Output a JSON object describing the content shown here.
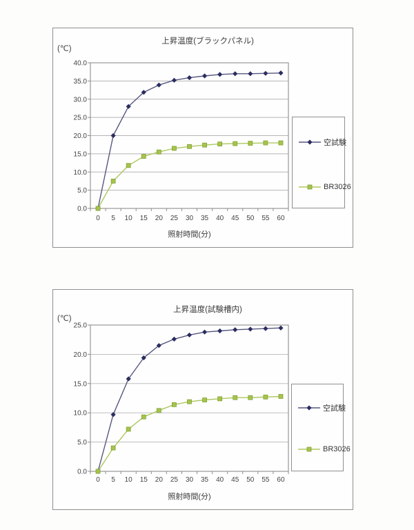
{
  "page": {
    "background": "#fdfdfc"
  },
  "chart_data": [
    {
      "type": "line",
      "title": "上昇温度(ブラックパネル)",
      "xlabel": "照射時間(分)",
      "ylabel": "(℃)",
      "x": [
        0,
        5,
        10,
        15,
        20,
        25,
        30,
        35,
        40,
        45,
        50,
        55,
        60
      ],
      "series": [
        {
          "name": "空試験",
          "marker": "diamond",
          "marker_color": "#2b2d60",
          "line_color": "#55577f",
          "values": [
            0.0,
            20.0,
            28.0,
            31.9,
            33.9,
            35.2,
            35.9,
            36.4,
            36.8,
            37.0,
            37.0,
            37.1,
            37.2
          ]
        },
        {
          "name": "BR3026",
          "marker": "square",
          "marker_color": "#a6c44e",
          "marker_stroke": "#83a134",
          "line_color": "#adc75f",
          "values": [
            0.0,
            7.5,
            11.8,
            14.3,
            15.5,
            16.5,
            17.0,
            17.4,
            17.7,
            17.8,
            17.9,
            18.0,
            18.0
          ]
        }
      ],
      "ylim": [
        0,
        40
      ],
      "ytick_step": 5,
      "grid": "horizontal",
      "legend_position": "right",
      "grid_color": "#b5b5b5",
      "axis_color": "#8e8e8e",
      "tick_label_color": "#434343"
    },
    {
      "type": "line",
      "title": "上昇温度(試験槽内)",
      "xlabel": "照射時間(分)",
      "ylabel": "(℃)",
      "x": [
        0,
        5,
        10,
        15,
        20,
        25,
        30,
        35,
        40,
        45,
        50,
        55,
        60
      ],
      "series": [
        {
          "name": "空試験",
          "marker": "diamond",
          "marker_color": "#2b2d60",
          "line_color": "#55577f",
          "values": [
            0.0,
            9.7,
            15.8,
            19.4,
            21.5,
            22.6,
            23.3,
            23.8,
            24.0,
            24.2,
            24.3,
            24.4,
            24.5
          ]
        },
        {
          "name": "BR3026",
          "marker": "square",
          "marker_color": "#a6c44e",
          "marker_stroke": "#83a134",
          "line_color": "#adc75f",
          "values": [
            0.0,
            4.0,
            7.2,
            9.3,
            10.4,
            11.4,
            11.9,
            12.2,
            12.4,
            12.6,
            12.6,
            12.7,
            12.8
          ]
        }
      ],
      "ylim": [
        0,
        25
      ],
      "ytick_step": 5,
      "grid": "horizontal",
      "legend_position": "right",
      "grid_color": "#b5b5b5",
      "axis_color": "#8e8e8e",
      "tick_label_color": "#434343"
    }
  ]
}
